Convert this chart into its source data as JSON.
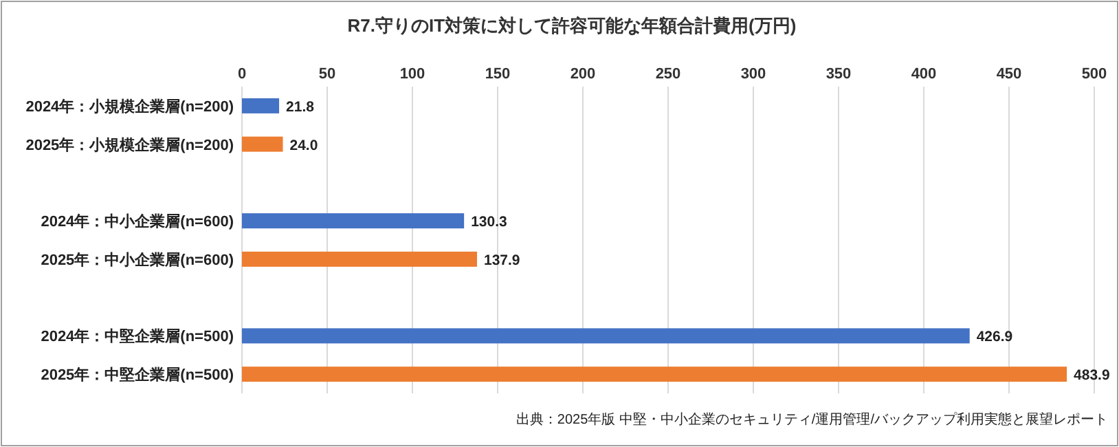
{
  "chart_data": {
    "type": "bar",
    "orientation": "horizontal",
    "title": "R7.守りのIT対策に対して許容可能な年額合計費用(万円)",
    "categories": [
      "2024年：小規模企業層(n=200)",
      "2025年：小規模企業層(n=200)",
      null,
      "2024年：中小企業層(n=600)",
      "2025年：中小企業層(n=600)",
      null,
      "2024年：中堅企業層(n=500)",
      "2025年：中堅企業層(n=500)"
    ],
    "values": [
      21.8,
      24.0,
      null,
      130.3,
      137.9,
      null,
      426.9,
      483.9
    ],
    "colors": [
      "#4472c4",
      "#ed7d31",
      null,
      "#4472c4",
      "#ed7d31",
      null,
      "#4472c4",
      "#ed7d31"
    ],
    "value_labels": [
      "21.8",
      "24.0",
      null,
      "130.3",
      "137.9",
      null,
      "426.9",
      "483.9"
    ],
    "xlim": [
      0,
      500
    ],
    "xticks": [
      0,
      50,
      100,
      150,
      200,
      250,
      300,
      350,
      400,
      450,
      500
    ],
    "grid": "x",
    "annotations": [
      "出典：2025年版 中堅・中小企業のセキュリティ/運用管理/バックアップ利用実態と展望レポート"
    ]
  }
}
